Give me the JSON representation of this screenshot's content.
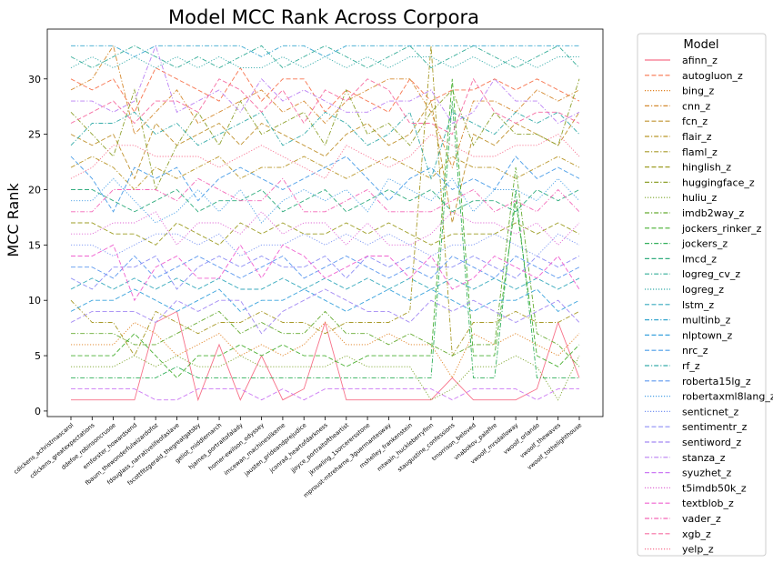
{
  "chart_data": {
    "type": "line",
    "title": "Model MCC Rank Across Corpora",
    "xlabel": "",
    "ylabel": "MCC Rank",
    "ylim": [
      -0.5,
      34.5
    ],
    "yticks": [
      0,
      5,
      10,
      15,
      20,
      25,
      30
    ],
    "grid": false,
    "legend": {
      "title": "Model",
      "placement": "outside-right"
    },
    "categories": [
      "cdickens_achristmascarol",
      "cdickens_greatexpectations",
      "ddefoe_robinsoncrusoe",
      "emforster_howardsend",
      "fbaum_thewonderfulwizardofoz",
      "fdouglass_narrativelifeofaslave",
      "fscottfitzgerald_thegreatgatsby",
      "geliot_middlemarch",
      "hjames_portraitofalady",
      "homer-ewilson_odyssey",
      "imcewan_machineslikeme",
      "jausten_prideandprejudice",
      "jconrad_heartofdarkness",
      "jjoyce_portraitoftheartist",
      "jkrowling_1sorcerersstone",
      "mproust-mtreharne_3guermantesway",
      "mshelley_frankenstein",
      "mtwain_huckleberryfinn",
      "staugustine_confessions",
      "tmorrison_beloved",
      "vnabokov_palefire",
      "vwoolf_mrsdalloway",
      "vwoolf_orlando",
      "vwoolf_thewaves",
      "vwoolf_tothelighthouse"
    ],
    "series": [
      {
        "name": "afinn_z",
        "color": "#f77189",
        "dash": "solid",
        "values": [
          1,
          1,
          1,
          1,
          8,
          9,
          1,
          6,
          1,
          5,
          1,
          2,
          8,
          1,
          1,
          1,
          1,
          1,
          3,
          1,
          1,
          1,
          2,
          8,
          3
        ]
      },
      {
        "name": "autogluon_z",
        "color": "#f7754f",
        "dash": "dashed",
        "values": [
          30,
          29,
          30,
          27,
          31,
          30,
          29,
          28,
          31,
          28,
          30,
          30,
          27,
          29,
          28,
          27,
          30,
          28,
          29,
          29,
          30,
          29,
          30,
          29,
          28
        ]
      },
      {
        "name": "bing_z",
        "color": "#e08020",
        "dash": "dotted",
        "values": [
          6,
          6,
          6,
          8,
          7,
          5,
          6,
          7,
          5,
          6,
          5,
          6,
          8,
          6,
          6,
          7,
          6,
          6,
          3,
          7,
          6,
          7,
          6,
          5,
          7
        ]
      },
      {
        "name": "cnn_z",
        "color": "#d58b31",
        "dash": "dashdot",
        "values": [
          29,
          30,
          33,
          25,
          27,
          29,
          26,
          27,
          28,
          29,
          27,
          28,
          26,
          28,
          29,
          30,
          30,
          27,
          22,
          28,
          28,
          27,
          29,
          28,
          29
        ]
      },
      {
        "name": "fcn_z",
        "color": "#c09330",
        "dash": "dashed",
        "values": [
          25,
          24,
          25,
          21,
          26,
          24,
          25,
          26,
          24,
          26,
          25,
          24,
          23,
          25,
          26,
          24,
          25,
          28,
          17,
          25,
          24,
          26,
          25,
          24,
          27
        ]
      },
      {
        "name": "flair_z",
        "color": "#b99629",
        "dash": "dashdot",
        "values": [
          22,
          23,
          22,
          20,
          22,
          21,
          22,
          23,
          21,
          22,
          22,
          23,
          22,
          21,
          22,
          23,
          22,
          21,
          23,
          22,
          22,
          21,
          22,
          23,
          22
        ]
      },
      {
        "name": "flaml_z",
        "color": "#a89a28",
        "dash": "dashdot",
        "values": [
          10,
          8,
          8,
          5,
          9,
          8,
          7,
          8,
          8,
          9,
          8,
          8,
          7,
          8,
          8,
          8,
          9,
          33,
          5,
          8,
          8,
          9,
          8,
          8,
          9
        ]
      },
      {
        "name": "hinglish_z",
        "color": "#9e9e26",
        "dash": "dashed",
        "values": [
          17,
          17,
          16,
          16,
          15,
          17,
          16,
          15,
          17,
          16,
          17,
          16,
          16,
          17,
          16,
          17,
          16,
          15,
          16,
          16,
          16,
          17,
          16,
          17,
          16
        ]
      },
      {
        "name": "huggingface_z",
        "color": "#8fa12e",
        "dash": "dashdot",
        "values": [
          27,
          25,
          23,
          29,
          20,
          24,
          27,
          24,
          28,
          25,
          26,
          27,
          24,
          29,
          25,
          26,
          24,
          27,
          29,
          24,
          27,
          25,
          25,
          24,
          30
        ]
      },
      {
        "name": "huliu_z",
        "color": "#7ea62f",
        "dash": "dotted",
        "values": [
          4,
          4,
          4,
          5,
          4,
          5,
          4,
          4,
          5,
          4,
          4,
          4,
          4,
          5,
          4,
          4,
          4,
          1,
          2,
          4,
          4,
          5,
          4,
          1,
          5
        ]
      },
      {
        "name": "imdb2way_z",
        "color": "#66ab32",
        "dash": "dashdot",
        "values": [
          7,
          7,
          7,
          6,
          6,
          7,
          8,
          9,
          7,
          8,
          7,
          7,
          9,
          7,
          7,
          6,
          7,
          6,
          5,
          6,
          6,
          22,
          7,
          6,
          4
        ]
      },
      {
        "name": "jockers_rinker_z",
        "color": "#4ab033",
        "dash": "dashed",
        "values": [
          5,
          5,
          5,
          7,
          5,
          3,
          5,
          5,
          6,
          5,
          6,
          5,
          5,
          4,
          5,
          5,
          5,
          5,
          30,
          5,
          5,
          19,
          5,
          4,
          6
        ]
      },
      {
        "name": "jockers_z",
        "color": "#33b05c",
        "dash": "dashdot",
        "values": [
          3,
          3,
          3,
          3,
          3,
          4,
          3,
          3,
          3,
          3,
          3,
          3,
          3,
          3,
          3,
          3,
          3,
          3,
          28,
          3,
          3,
          20,
          3,
          3,
          3
        ]
      },
      {
        "name": "lmcd_z",
        "color": "#34ae80",
        "dash": "dashed",
        "values": [
          20,
          20,
          19,
          18,
          19,
          20,
          18,
          19,
          19,
          20,
          18,
          19,
          20,
          18,
          19,
          20,
          19,
          20,
          18,
          19,
          19,
          18,
          20,
          19,
          20
        ]
      },
      {
        "name": "logreg_cv_z",
        "color": "#35ad98",
        "dash": "dashdot",
        "values": [
          32,
          31,
          32,
          33,
          32,
          31,
          32,
          31,
          32,
          33,
          31,
          32,
          33,
          32,
          31,
          32,
          33,
          31,
          32,
          33,
          32,
          31,
          32,
          33,
          31
        ]
      },
      {
        "name": "logreg_z",
        "color": "#36acaa",
        "dash": "dotted",
        "values": [
          31,
          32,
          31,
          32,
          31,
          32,
          31,
          32,
          31,
          31,
          32,
          31,
          32,
          31,
          32,
          31,
          32,
          32,
          31,
          32,
          31,
          32,
          31,
          32,
          32
        ]
      },
      {
        "name": "lstm_z",
        "color": "#38aabd",
        "dash": "dashed",
        "values": [
          11,
          12,
          11,
          12,
          11,
          12,
          11,
          12,
          11,
          11,
          12,
          11,
          12,
          11,
          12,
          11,
          12,
          11,
          12,
          11,
          12,
          11,
          12,
          11,
          12
        ]
      },
      {
        "name": "multinb_z",
        "color": "#39a7cf",
        "dash": "dashdot",
        "values": [
          33,
          33,
          33,
          32,
          33,
          33,
          33,
          33,
          33,
          32,
          33,
          33,
          32,
          33,
          33,
          33,
          33,
          33,
          33,
          33,
          33,
          33,
          33,
          33,
          33
        ]
      },
      {
        "name": "nlptown_z",
        "color": "#3ba3dd",
        "dash": "dashed",
        "values": [
          9,
          10,
          10,
          11,
          10,
          9,
          10,
          11,
          9,
          10,
          10,
          11,
          10,
          9,
          10,
          11,
          10,
          11,
          10,
          9,
          10,
          10,
          11,
          9,
          10
        ]
      },
      {
        "name": "nrc_z",
        "color": "#4b9ee8",
        "dash": "dashed",
        "values": [
          23,
          21,
          18,
          22,
          21,
          22,
          19,
          21,
          22,
          21,
          20,
          21,
          22,
          23,
          21,
          19,
          21,
          22,
          20,
          21,
          20,
          23,
          21,
          22,
          21
        ]
      },
      {
        "name": "rf_z",
        "color": "#37acaa",
        "dash": "dashdot",
        "values": [
          24,
          26,
          26,
          27,
          25,
          26,
          24,
          25,
          26,
          27,
          24,
          25,
          27,
          26,
          24,
          25,
          27,
          21,
          27,
          26,
          25,
          27,
          26,
          27,
          25
        ]
      },
      {
        "name": "roberta15lg_z",
        "color": "#5d99ef",
        "dash": "dashed",
        "values": [
          13,
          13,
          12,
          14,
          12,
          13,
          14,
          13,
          12,
          13,
          14,
          12,
          13,
          14,
          13,
          12,
          13,
          12,
          14,
          13,
          12,
          14,
          13,
          12,
          13
        ]
      },
      {
        "name": "robertaxml8lang_z",
        "color": "#4ba1e6",
        "dash": "dotted",
        "values": [
          19,
          19,
          21,
          19,
          17,
          18,
          20,
          18,
          20,
          17,
          19,
          20,
          19,
          20,
          18,
          21,
          20,
          19,
          21,
          18,
          20,
          20,
          19,
          21,
          19
        ]
      },
      {
        "name": "senticnet_z",
        "color": "#7994f3",
        "dash": "dotted",
        "values": [
          15,
          15,
          14,
          15,
          16,
          16,
          15,
          16,
          14,
          15,
          15,
          16,
          15,
          16,
          15,
          16,
          15,
          14,
          15,
          15,
          16,
          15,
          14,
          16,
          15
        ]
      },
      {
        "name": "sentimentr_z",
        "color": "#8e8ff5",
        "dash": "dashed",
        "values": [
          12,
          11,
          13,
          13,
          14,
          11,
          13,
          14,
          13,
          14,
          13,
          13,
          14,
          12,
          14,
          13,
          14,
          13,
          13,
          14,
          13,
          12,
          14,
          13,
          14
        ]
      },
      {
        "name": "sentiword_z",
        "color": "#a389f4",
        "dash": "dashed",
        "values": [
          8,
          9,
          9,
          9,
          8,
          10,
          9,
          10,
          10,
          7,
          9,
          10,
          11,
          10,
          9,
          9,
          8,
          10,
          9,
          10,
          9,
          8,
          9,
          10,
          8
        ]
      },
      {
        "name": "stanza_z",
        "color": "#ba80f4",
        "dash": "dashdot",
        "values": [
          28,
          28,
          27,
          28,
          33,
          27,
          28,
          29,
          27,
          30,
          28,
          29,
          28,
          27,
          27,
          28,
          28,
          29,
          26,
          27,
          30,
          28,
          28,
          26,
          27
        ]
      },
      {
        "name": "syuzhet_z",
        "color": "#cc7af4",
        "dash": "dashed",
        "values": [
          2,
          2,
          2,
          2,
          1,
          1,
          2,
          2,
          2,
          1,
          2,
          1,
          2,
          2,
          2,
          2,
          2,
          2,
          1,
          2,
          2,
          2,
          1,
          2,
          2
        ]
      },
      {
        "name": "t5imdb50k_z",
        "color": "#e06ad5",
        "dash": "dotted",
        "values": [
          16,
          16,
          17,
          17,
          18,
          15,
          17,
          17,
          16,
          18,
          16,
          17,
          17,
          15,
          17,
          15,
          15,
          16,
          18,
          17,
          17,
          16,
          17,
          15,
          17
        ]
      },
      {
        "name": "textblob_z",
        "color": "#f062d0",
        "dash": "dashed",
        "values": [
          14,
          14,
          15,
          10,
          13,
          14,
          12,
          12,
          15,
          12,
          15,
          14,
          12,
          13,
          14,
          14,
          12,
          14,
          11,
          12,
          14,
          13,
          12,
          14,
          11
        ]
      },
      {
        "name": "vader_z",
        "color": "#f468b8",
        "dash": "dashdot",
        "values": [
          18,
          18,
          20,
          20,
          20,
          19,
          21,
          20,
          19,
          19,
          21,
          18,
          18,
          19,
          20,
          18,
          18,
          18,
          19,
          20,
          18,
          19,
          18,
          20,
          18
        ]
      },
      {
        "name": "xgb_z",
        "color": "#f66ea3",
        "dash": "dashed",
        "values": [
          26,
          27,
          28,
          26,
          28,
          28,
          27,
          30,
          29,
          27,
          29,
          26,
          29,
          28,
          30,
          29,
          26,
          26,
          25,
          30,
          27,
          26,
          27,
          27,
          26
        ]
      },
      {
        "name": "yelp_z",
        "color": "#f77190",
        "dash": "dotted",
        "values": [
          21,
          22,
          24,
          24,
          23,
          23,
          23,
          22,
          23,
          24,
          23,
          22,
          21,
          24,
          23,
          22,
          23,
          25,
          24,
          23,
          23,
          24,
          24,
          25,
          23
        ]
      }
    ]
  }
}
